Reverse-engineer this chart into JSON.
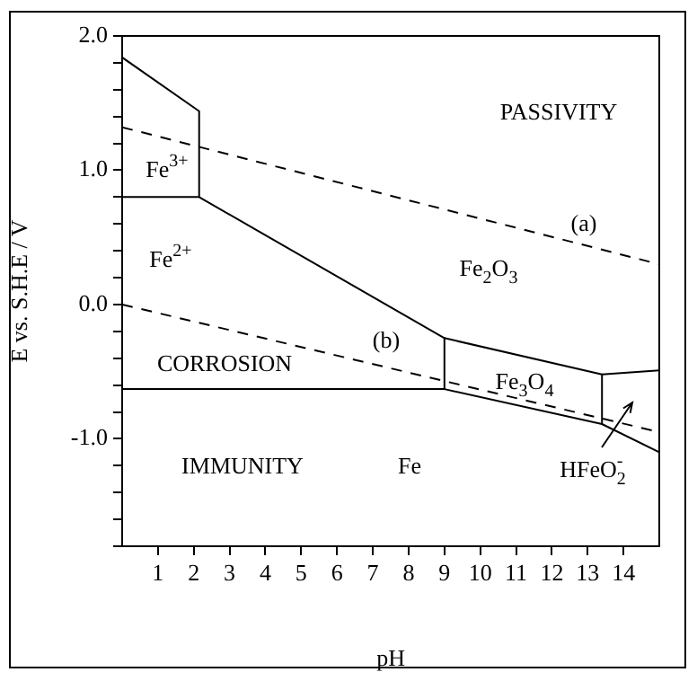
{
  "chart_data": {
    "type": "line",
    "xlabel": "pH",
    "ylabel": "E vs. S.H.E / V",
    "xlim": [
      0,
      15
    ],
    "xticks": [
      1,
      2,
      3,
      4,
      5,
      6,
      7,
      8,
      9,
      10,
      11,
      12,
      13,
      14
    ],
    "ylim": [
      -1.8,
      2.0
    ],
    "yticks": [
      {
        "value": -1.8,
        "label": null
      },
      {
        "value": -1.6,
        "label": null
      },
      {
        "value": -1.4,
        "label": null
      },
      {
        "value": -1.2,
        "label": null
      },
      {
        "value": -1,
        "label": "-1.0"
      },
      {
        "value": -0.8,
        "label": null
      },
      {
        "value": -0.6,
        "label": null
      },
      {
        "value": -0.4,
        "label": null
      },
      {
        "value": -0.2,
        "label": null
      },
      {
        "value": 0,
        "label": "0.0"
      },
      {
        "value": 0.2,
        "label": null
      },
      {
        "value": 0.4,
        "label": null
      },
      {
        "value": 0.6,
        "label": null
      },
      {
        "value": 0.8,
        "label": null
      },
      {
        "value": 1,
        "label": "1.0"
      },
      {
        "value": 1.2,
        "label": null
      },
      {
        "value": 1.4,
        "label": null
      },
      {
        "value": 1.6,
        "label": null
      },
      {
        "value": 1.8,
        "label": null
      },
      {
        "value": 2,
        "label": "2.0"
      }
    ],
    "grid": false,
    "legend": false,
    "marker": "none",
    "series": [
      {
        "color": "#000000",
        "line_style": "solid",
        "x": [
          0,
          2.15,
          2.15,
          9,
          9,
          0
        ],
        "values": [
          1.84,
          1.44,
          0.8,
          -0.25,
          -0.63,
          -0.63
        ]
      },
      {
        "color": "#000000",
        "line_style": "solid",
        "x": [
          0,
          2.15
        ],
        "values": [
          0.8,
          0.8
        ]
      },
      {
        "color": "#000000",
        "line_style": "solid",
        "x": [
          9,
          13.4,
          13.4,
          9
        ],
        "values": [
          -0.25,
          -0.52,
          -0.89,
          -0.63
        ]
      },
      {
        "color": "#000000",
        "line_style": "solid",
        "x": [
          13.4,
          15
        ],
        "values": [
          -0.52,
          -0.49
        ]
      },
      {
        "color": "#000000",
        "line_style": "solid",
        "x": [
          13.4,
          15
        ],
        "values": [
          -0.89,
          -1.1
        ]
      },
      {
        "color": "#000000",
        "line_style": "dashed",
        "x": [
          0,
          15
        ],
        "values": [
          1.32,
          0.3
        ]
      },
      {
        "color": "#000000",
        "line_style": "dashed",
        "x": [
          0,
          15
        ],
        "values": [
          0.0,
          -0.95
        ]
      }
    ],
    "annotations": [
      "PASSIVITY",
      "Fe$^{3+}$",
      "Fe$^{2+}$",
      "Fe$_{2}$O$_{3}$",
      "(a)",
      "(b)",
      "CORROSION",
      "Fe$_{3}$O$_{4}$",
      "IMMUNITY",
      "Fe",
      "HFeO$_{2}$$^{-}$"
    ]
  }
}
